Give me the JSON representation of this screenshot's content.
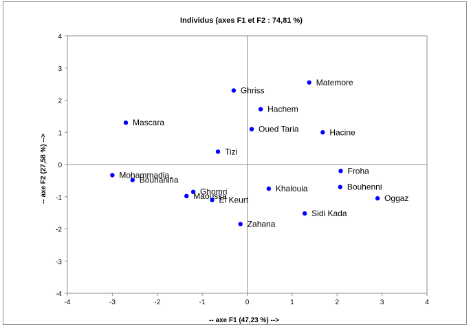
{
  "chart_data": {
    "type": "scatter",
    "title": "Individus (axes F1 et F2 : 74,81 %)",
    "xlabel": "-- axe F1 (47,23 %) -->",
    "ylabel": "-- axe F2 (27,58 %) -->",
    "xlim": [
      -4,
      4
    ],
    "ylim": [
      -4,
      4
    ],
    "xticks": [
      "-4",
      "-3",
      "-2",
      "-1",
      "0",
      "1",
      "2",
      "3",
      "4"
    ],
    "yticks": [
      "-4",
      "-3",
      "-2",
      "-1",
      "0",
      "1",
      "2",
      "3",
      "4"
    ],
    "grid": false,
    "legend": "none",
    "point_color": "#0000FF",
    "points": [
      {
        "label": "Matemore",
        "x": 1.38,
        "y": 2.55
      },
      {
        "label": "Ghriss",
        "x": -0.3,
        "y": 2.3
      },
      {
        "label": "Hachem",
        "x": 0.3,
        "y": 1.72
      },
      {
        "label": "Mascara",
        "x": -2.7,
        "y": 1.3
      },
      {
        "label": "Oued Taria",
        "x": 0.1,
        "y": 1.1
      },
      {
        "label": "Hacine",
        "x": 1.68,
        "y": 1.0
      },
      {
        "label": "Tizi",
        "x": -0.65,
        "y": 0.4
      },
      {
        "label": "Froha",
        "x": 2.08,
        "y": -0.2
      },
      {
        "label": "Mohammadia",
        "x": -3.0,
        "y": -0.33
      },
      {
        "label": "Bouhanifia",
        "x": -2.55,
        "y": -0.48
      },
      {
        "label": "Bouhenni",
        "x": 2.07,
        "y": -0.7
      },
      {
        "label": "Khalouia",
        "x": 0.48,
        "y": -0.75
      },
      {
        "label": "Ghomri",
        "x": -1.2,
        "y": -0.85
      },
      {
        "label": "Maoussa",
        "x": -1.35,
        "y": -0.98
      },
      {
        "label": "Oggaz",
        "x": 2.9,
        "y": -1.05
      },
      {
        "label": "El Keurt",
        "x": -0.78,
        "y": -1.1
      },
      {
        "label": "Sidi Kada",
        "x": 1.28,
        "y": -1.52
      },
      {
        "label": "Zahana",
        "x": -0.15,
        "y": -1.85
      }
    ]
  }
}
